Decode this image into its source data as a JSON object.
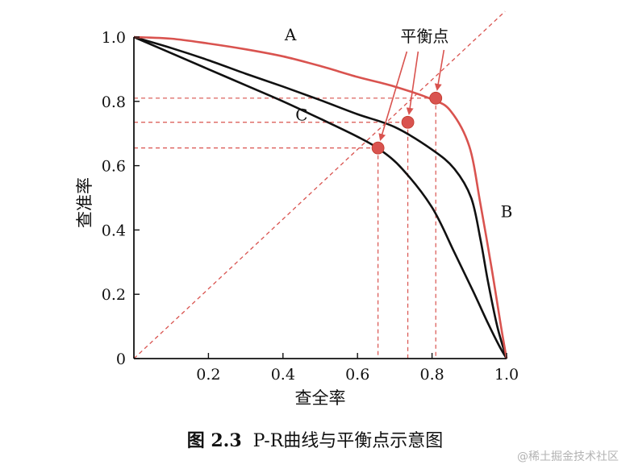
{
  "chart_data": {
    "type": "line",
    "xlabel": "查全率",
    "ylabel": "查准率",
    "xlim": [
      0,
      1
    ],
    "ylim": [
      0,
      1
    ],
    "x_ticks": [
      {
        "value": 0.2,
        "label": "0.2"
      },
      {
        "value": 0.4,
        "label": "0.4"
      },
      {
        "value": 0.6,
        "label": "0.6"
      },
      {
        "value": 0.8,
        "label": "0.8"
      },
      {
        "value": 1.0,
        "label": "1.0"
      }
    ],
    "y_ticks": [
      {
        "value": 0.0,
        "label": "0"
      },
      {
        "value": 0.2,
        "label": "0.2"
      },
      {
        "value": 0.4,
        "label": "0.4"
      },
      {
        "value": 0.6,
        "label": "0.6"
      },
      {
        "value": 0.8,
        "label": "0.8"
      },
      {
        "value": 1.0,
        "label": "1.0"
      }
    ],
    "grid": false,
    "series": [
      {
        "name": "A",
        "color": "#d9534f",
        "points": [
          [
            0,
            1.0
          ],
          [
            0.1,
            0.995
          ],
          [
            0.2,
            0.98
          ],
          [
            0.3,
            0.962
          ],
          [
            0.4,
            0.94
          ],
          [
            0.5,
            0.91
          ],
          [
            0.6,
            0.876
          ],
          [
            0.7,
            0.846
          ],
          [
            0.8,
            0.806
          ],
          [
            0.85,
            0.77
          ],
          [
            0.9,
            0.66
          ],
          [
            0.93,
            0.48
          ],
          [
            0.96,
            0.28
          ],
          [
            0.985,
            0.1
          ],
          [
            1.0,
            0.0
          ]
        ],
        "label_point": [
          0.42,
          0.99
        ]
      },
      {
        "name": "B",
        "color": "#111111",
        "points": [
          [
            0,
            1.0
          ],
          [
            0.1,
            0.966
          ],
          [
            0.2,
            0.928
          ],
          [
            0.3,
            0.886
          ],
          [
            0.4,
            0.846
          ],
          [
            0.5,
            0.804
          ],
          [
            0.6,
            0.76
          ],
          [
            0.7,
            0.72
          ],
          [
            0.8,
            0.65
          ],
          [
            0.86,
            0.59
          ],
          [
            0.905,
            0.5
          ],
          [
            0.93,
            0.37
          ],
          [
            0.95,
            0.24
          ],
          [
            0.975,
            0.1
          ],
          [
            1.0,
            0.0
          ]
        ],
        "label_point": [
          1.0,
          0.44
        ]
      },
      {
        "name": "C",
        "color": "#111111",
        "points": [
          [
            0,
            1.0
          ],
          [
            0.1,
            0.95
          ],
          [
            0.2,
            0.9
          ],
          [
            0.3,
            0.85
          ],
          [
            0.4,
            0.8
          ],
          [
            0.5,
            0.746
          ],
          [
            0.6,
            0.69
          ],
          [
            0.66,
            0.65
          ],
          [
            0.72,
            0.59
          ],
          [
            0.8,
            0.47
          ],
          [
            0.86,
            0.33
          ],
          [
            0.91,
            0.21
          ],
          [
            0.95,
            0.11
          ],
          [
            0.98,
            0.04
          ],
          [
            1.0,
            0.0
          ]
        ],
        "label_point": [
          0.45,
          0.74
        ]
      }
    ],
    "reference_line": {
      "points": [
        [
          0,
          0
        ],
        [
          1,
          1
        ]
      ],
      "color": "#d9534f",
      "style": "dashed"
    },
    "balance_points": [
      {
        "x": 0.81,
        "y": 0.81,
        "color": "#d9534f"
      },
      {
        "x": 0.735,
        "y": 0.735,
        "color": "#d9534f"
      },
      {
        "x": 0.655,
        "y": 0.655,
        "color": "#d9534f"
      }
    ],
    "annotation": {
      "text": "平衡点",
      "anchor": [
        0.78,
        0.985
      ],
      "color": "#d9534f"
    }
  },
  "caption": {
    "figure_number": "图 2.3",
    "title": "P-R曲线与平衡点示意图"
  },
  "watermark": "@稀土掘金技术社区"
}
